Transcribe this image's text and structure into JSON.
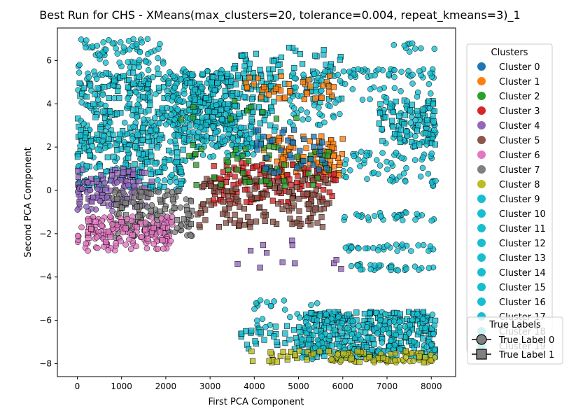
{
  "chart_data": {
    "type": "scatter",
    "title": "Best Run for CHS - XMeans(max_clusters=20, tolerance=0.004, repeat_kmeans=3)_1",
    "xlabel": "First PCA Component",
    "ylabel": "Second PCA Component",
    "xlim": [
      -450,
      8550
    ],
    "ylim": [
      -8.6,
      7.5
    ],
    "x_ticks": [
      "0",
      "1000",
      "2000",
      "3000",
      "4000",
      "5000",
      "6000",
      "7000",
      "8000"
    ],
    "y_ticks": [
      "6",
      "4",
      "2",
      "0",
      "−2",
      "−4",
      "−6",
      "−8"
    ],
    "x_tick_values": [
      0,
      1000,
      2000,
      3000,
      4000,
      5000,
      6000,
      7000,
      8000
    ],
    "y_tick_values": [
      6,
      4,
      2,
      0,
      -2,
      -4,
      -6,
      -8
    ],
    "grid": false,
    "cluster_legend": {
      "title": "Clusters",
      "placement": "right",
      "entries": [
        {
          "name": "Cluster 0",
          "color": "#1f77b4"
        },
        {
          "name": "Cluster 1",
          "color": "#ff7f0e"
        },
        {
          "name": "Cluster 2",
          "color": "#2ca02c"
        },
        {
          "name": "Cluster 3",
          "color": "#d62728"
        },
        {
          "name": "Cluster 4",
          "color": "#9467bd"
        },
        {
          "name": "Cluster 5",
          "color": "#8c564b"
        },
        {
          "name": "Cluster 6",
          "color": "#e377c2"
        },
        {
          "name": "Cluster 7",
          "color": "#7f7f7f"
        },
        {
          "name": "Cluster 8",
          "color": "#bcbd22"
        },
        {
          "name": "Cluster 9",
          "color": "#17becf"
        },
        {
          "name": "Cluster 10",
          "color": "#17becf"
        },
        {
          "name": "Cluster 11",
          "color": "#17becf"
        },
        {
          "name": "Cluster 12",
          "color": "#17becf"
        },
        {
          "name": "Cluster 13",
          "color": "#17becf"
        },
        {
          "name": "Cluster 14",
          "color": "#17becf"
        },
        {
          "name": "Cluster 15",
          "color": "#17becf"
        },
        {
          "name": "Cluster 16",
          "color": "#17becf"
        },
        {
          "name": "Cluster 17",
          "color": "#17becf"
        },
        {
          "name": "Cluster 18",
          "color": "#17becf"
        },
        {
          "name": "Cluster 19",
          "color": "#17becf"
        }
      ]
    },
    "marker_legend": {
      "title": "True Labels",
      "placement": "lower-right",
      "entries": [
        {
          "name": "True Label 0",
          "marker": "circle"
        },
        {
          "name": "True Label 1",
          "marker": "square"
        }
      ]
    },
    "point_regions": [
      {
        "cluster": 9,
        "marker": "circle",
        "x": [
          0,
          2000
        ],
        "y": [
          3.5,
          7.0
        ],
        "count": 160
      },
      {
        "cluster": 9,
        "marker": "square",
        "x": [
          0,
          2000
        ],
        "y": [
          2.0,
          5.5
        ],
        "count": 110
      },
      {
        "cluster": 9,
        "marker": "circle",
        "x": [
          0,
          2500
        ],
        "y": [
          0.0,
          3.5
        ],
        "count": 160
      },
      {
        "cluster": 9,
        "marker": "square",
        "x": [
          0,
          2500
        ],
        "y": [
          0.0,
          3.0
        ],
        "count": 110
      },
      {
        "cluster": 9,
        "marker": "circle",
        "x": [
          2000,
          3500
        ],
        "y": [
          3.0,
          5.6
        ],
        "count": 240
      },
      {
        "cluster": 9,
        "marker": "square",
        "x": [
          2500,
          4500
        ],
        "y": [
          2.0,
          5.4
        ],
        "count": 180
      },
      {
        "cluster": 9,
        "marker": "square",
        "x": [
          3500,
          6000
        ],
        "y": [
          4.0,
          6.6
        ],
        "count": 80
      },
      {
        "cluster": 9,
        "marker": "circle",
        "x": [
          4800,
          6000
        ],
        "y": [
          3.0,
          5.5
        ],
        "count": 60
      },
      {
        "cluster": 9,
        "marker": "circle",
        "x": [
          2500,
          4000
        ],
        "y": [
          1.5,
          3.0
        ],
        "count": 60
      },
      {
        "cluster": 9,
        "marker": "circle",
        "x": [
          6000,
          8100
        ],
        "y": [
          5.2,
          5.6
        ],
        "count": 40
      },
      {
        "cluster": 9,
        "marker": "circle",
        "x": [
          6800,
          8100
        ],
        "y": [
          2.0,
          4.0
        ],
        "count": 70
      },
      {
        "cluster": 9,
        "marker": "square",
        "x": [
          6800,
          8100
        ],
        "y": [
          2.0,
          4.2
        ],
        "count": 60
      },
      {
        "cluster": 9,
        "marker": "circle",
        "x": [
          6000,
          8100
        ],
        "y": [
          0.2,
          1.8
        ],
        "count": 60
      },
      {
        "cluster": 9,
        "marker": "circle",
        "x": [
          6000,
          8100
        ],
        "y": [
          -1.4,
          -1.0
        ],
        "count": 30
      },
      {
        "cluster": 9,
        "marker": "circle",
        "x": [
          6000,
          8100
        ],
        "y": [
          -2.8,
          -2.5
        ],
        "count": 30
      },
      {
        "cluster": 9,
        "marker": "circle",
        "x": [
          6000,
          8100
        ],
        "y": [
          -3.7,
          -3.4
        ],
        "count": 30
      },
      {
        "cluster": 9,
        "marker": "circle",
        "x": [
          6800,
          8100
        ],
        "y": [
          6.4,
          6.8
        ],
        "count": 10
      },
      {
        "cluster": 9,
        "marker": "circle",
        "x": [
          6000,
          8100
        ],
        "y": [
          4.0,
          5.0
        ],
        "count": 20
      },
      {
        "cluster": 9,
        "marker": "circle",
        "x": [
          4000,
          5500
        ],
        "y": [
          -6.4,
          -5.0
        ],
        "count": 25
      },
      {
        "cluster": 9,
        "marker": "square",
        "x": [
          5000,
          8100
        ],
        "y": [
          -7.8,
          -5.6
        ],
        "count": 330
      },
      {
        "cluster": 9,
        "marker": "circle",
        "x": [
          5000,
          8100
        ],
        "y": [
          -7.8,
          -5.6
        ],
        "count": 120
      },
      {
        "cluster": 9,
        "marker": "square",
        "x": [
          3700,
          5000
        ],
        "y": [
          -7.4,
          -6.2
        ],
        "count": 30
      },
      {
        "cluster": 1,
        "marker": "square",
        "x": [
          4200,
          6000
        ],
        "y": [
          0.6,
          2.5
        ],
        "count": 90
      },
      {
        "cluster": 1,
        "marker": "square",
        "x": [
          3800,
          5800
        ],
        "y": [
          4.2,
          5.3
        ],
        "count": 40
      },
      {
        "cluster": 3,
        "marker": "square",
        "x": [
          3000,
          5900
        ],
        "y": [
          -0.6,
          1.3
        ],
        "count": 130
      },
      {
        "cluster": 5,
        "marker": "square",
        "x": [
          2700,
          5700
        ],
        "y": [
          -1.7,
          0.6
        ],
        "count": 150
      },
      {
        "cluster": 2,
        "marker": "square",
        "x": [
          2500,
          5800
        ],
        "y": [
          0.2,
          2.1
        ],
        "count": 55
      },
      {
        "cluster": 2,
        "marker": "square",
        "x": [
          2300,
          5000
        ],
        "y": [
          3.0,
          4.2
        ],
        "count": 12
      },
      {
        "cluster": 0,
        "marker": "square",
        "x": [
          4000,
          5700
        ],
        "y": [
          0.8,
          2.8
        ],
        "count": 40
      },
      {
        "cluster": 4,
        "marker": "square",
        "x": [
          0,
          1700
        ],
        "y": [
          -0.8,
          1.0
        ],
        "count": 80
      },
      {
        "cluster": 4,
        "marker": "circle",
        "x": [
          0,
          1300
        ],
        "y": [
          -1.0,
          0.5
        ],
        "count": 40
      },
      {
        "cluster": 4,
        "marker": "square",
        "x": [
          3500,
          6000
        ],
        "y": [
          -3.8,
          -2.3
        ],
        "count": 12
      },
      {
        "cluster": 7,
        "marker": "circle",
        "x": [
          800,
          2600
        ],
        "y": [
          -2.2,
          0.0
        ],
        "count": 110
      },
      {
        "cluster": 7,
        "marker": "square",
        "x": [
          800,
          2600
        ],
        "y": [
          -1.8,
          0.0
        ],
        "count": 40
      },
      {
        "cluster": 6,
        "marker": "circle",
        "x": [
          0,
          2200
        ],
        "y": [
          -2.8,
          -1.2
        ],
        "count": 130
      },
      {
        "cluster": 6,
        "marker": "square",
        "x": [
          200,
          2000
        ],
        "y": [
          -2.4,
          -1.3
        ],
        "count": 25
      },
      {
        "cluster": 8,
        "marker": "circle",
        "x": [
          5700,
          8100
        ],
        "y": [
          -7.95,
          -7.5
        ],
        "count": 60
      },
      {
        "cluster": 8,
        "marker": "square",
        "x": [
          3900,
          8100
        ],
        "y": [
          -7.95,
          -7.4
        ],
        "count": 40
      }
    ]
  }
}
